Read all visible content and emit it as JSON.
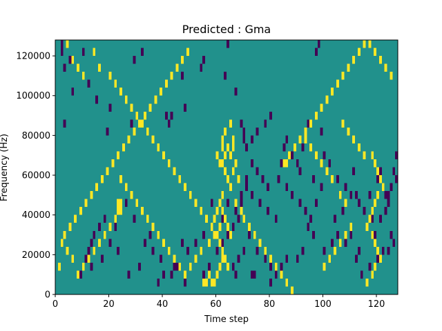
{
  "chart_data": {
    "type": "heatmap",
    "title": "Predicted : Gma",
    "xlabel": "Time step",
    "ylabel": "Frequency (Hz)",
    "xlim": [
      0,
      128
    ],
    "ylim": [
      0,
      128000
    ],
    "x_ticks": [
      0,
      20,
      40,
      60,
      80,
      100,
      120
    ],
    "y_ticks": [
      0,
      20000,
      40000,
      60000,
      80000,
      100000,
      120000
    ],
    "x_tick_labels": [
      "0",
      "20",
      "40",
      "60",
      "80",
      "100",
      "120"
    ],
    "y_tick_labels": [
      "0",
      "20000",
      "40000",
      "60000",
      "80000",
      "100000",
      "120000"
    ],
    "grid": false,
    "colors": {
      "background": "#21918c",
      "low": "#440154",
      "high": "#fde725",
      "frame": "#000000"
    },
    "cell_width": 1,
    "cell_height": 4000,
    "background_value": 0,
    "low_cells": [
      [
        2,
        124000
      ],
      [
        2,
        120000
      ],
      [
        3,
        112000
      ],
      [
        5,
        116000
      ],
      [
        10,
        120000
      ],
      [
        12,
        104000
      ],
      [
        6,
        100000
      ],
      [
        3,
        84000
      ],
      [
        15,
        96000
      ],
      [
        20,
        92000
      ],
      [
        19,
        80000
      ],
      [
        28,
        84000
      ],
      [
        29,
        116000
      ],
      [
        32,
        120000
      ],
      [
        33,
        88000
      ],
      [
        41,
        88000
      ],
      [
        42,
        84000
      ],
      [
        43,
        88000
      ],
      [
        47,
        108000
      ],
      [
        48,
        92000
      ],
      [
        54,
        112000
      ],
      [
        55,
        116000
      ],
      [
        63,
        108000
      ],
      [
        64,
        124000
      ],
      [
        67,
        100000
      ],
      [
        69,
        84000
      ],
      [
        70,
        80000
      ],
      [
        70,
        76000
      ],
      [
        71,
        72000
      ],
      [
        73,
        76000
      ],
      [
        75,
        80000
      ],
      [
        78,
        84000
      ],
      [
        80,
        88000
      ],
      [
        84,
        64000
      ],
      [
        85,
        72000
      ],
      [
        86,
        76000
      ],
      [
        88,
        68000
      ],
      [
        90,
        64000
      ],
      [
        91,
        60000
      ],
      [
        92,
        72000
      ],
      [
        94,
        84000
      ],
      [
        97,
        120000
      ],
      [
        98,
        124000
      ],
      [
        99,
        80000
      ],
      [
        100,
        68000
      ],
      [
        102,
        64000
      ],
      [
        105,
        56000
      ],
      [
        108,
        52000
      ],
      [
        110,
        48000
      ],
      [
        111,
        60000
      ],
      [
        112,
        48000
      ],
      [
        113,
        44000
      ],
      [
        115,
        40000
      ],
      [
        117,
        48000
      ],
      [
        118,
        36000
      ],
      [
        120,
        56000
      ],
      [
        121,
        60000
      ],
      [
        122,
        52000
      ],
      [
        123,
        48000
      ],
      [
        124,
        44000
      ],
      [
        125,
        52000
      ],
      [
        126,
        60000
      ],
      [
        127,
        56000
      ],
      [
        127,
        68000
      ],
      [
        126,
        24000
      ],
      [
        125,
        28000
      ],
      [
        124,
        20000
      ],
      [
        122,
        20000
      ],
      [
        120,
        16000
      ],
      [
        117,
        12000
      ],
      [
        114,
        8000
      ],
      [
        112,
        16000
      ],
      [
        108,
        24000
      ],
      [
        105,
        28000
      ],
      [
        103,
        24000
      ],
      [
        100,
        20000
      ],
      [
        96,
        28000
      ],
      [
        94,
        32000
      ],
      [
        92,
        20000
      ],
      [
        90,
        16000
      ],
      [
        86,
        16000
      ],
      [
        84,
        12000
      ],
      [
        82,
        8000
      ],
      [
        80,
        12000
      ],
      [
        78,
        16000
      ],
      [
        75,
        20000
      ],
      [
        72,
        28000
      ],
      [
        70,
        20000
      ],
      [
        68,
        16000
      ],
      [
        66,
        12000
      ],
      [
        67,
        8000
      ],
      [
        73,
        8000
      ],
      [
        74,
        8000
      ],
      [
        80,
        4000
      ],
      [
        82,
        36000
      ],
      [
        79,
        40000
      ],
      [
        76,
        44000
      ],
      [
        73,
        48000
      ],
      [
        71,
        52000
      ],
      [
        69,
        48000
      ],
      [
        67,
        40000
      ],
      [
        64,
        44000
      ],
      [
        62,
        36000
      ],
      [
        60,
        40000
      ],
      [
        58,
        44000
      ],
      [
        55,
        28000
      ],
      [
        52,
        24000
      ],
      [
        49,
        20000
      ],
      [
        47,
        24000
      ],
      [
        44,
        12000
      ],
      [
        43,
        8000
      ],
      [
        39,
        16000
      ],
      [
        36,
        20000
      ],
      [
        35,
        28000
      ],
      [
        33,
        24000
      ],
      [
        29,
        36000
      ],
      [
        26,
        44000
      ],
      [
        24,
        40000
      ],
      [
        22,
        32000
      ],
      [
        18,
        36000
      ],
      [
        16,
        32000
      ],
      [
        14,
        28000
      ],
      [
        12,
        20000
      ],
      [
        11,
        16000
      ],
      [
        10,
        12000
      ],
      [
        9,
        8000
      ],
      [
        13,
        24000
      ],
      [
        13,
        12000
      ],
      [
        17,
        16000
      ],
      [
        20,
        24000
      ],
      [
        23,
        20000
      ],
      [
        27,
        8000
      ],
      [
        31,
        12000
      ],
      [
        38,
        4000
      ],
      [
        40,
        8000
      ],
      [
        45,
        12000
      ],
      [
        48,
        4000
      ],
      [
        55,
        8000
      ],
      [
        57,
        12000
      ],
      [
        60,
        20000
      ],
      [
        62,
        24000
      ],
      [
        64,
        28000
      ],
      [
        66,
        32000
      ],
      [
        68,
        36000
      ],
      [
        69,
        44000
      ],
      [
        71,
        56000
      ],
      [
        73,
        64000
      ],
      [
        75,
        60000
      ],
      [
        77,
        56000
      ],
      [
        79,
        52000
      ],
      [
        83,
        56000
      ],
      [
        86,
        52000
      ],
      [
        88,
        48000
      ],
      [
        91,
        44000
      ],
      [
        93,
        40000
      ],
      [
        95,
        36000
      ],
      [
        97,
        44000
      ],
      [
        96,
        56000
      ],
      [
        99,
        52000
      ],
      [
        104,
        36000
      ],
      [
        107,
        40000
      ],
      [
        110,
        28000
      ],
      [
        113,
        20000
      ],
      [
        116,
        32000
      ],
      [
        119,
        28000
      ],
      [
        121,
        36000
      ],
      [
        123,
        40000
      ],
      [
        124,
        48000
      ]
    ],
    "high_cells": [
      [
        4,
        124000
      ],
      [
        6,
        116000
      ],
      [
        8,
        112000
      ],
      [
        10,
        108000
      ],
      [
        14,
        120000
      ],
      [
        16,
        112000
      ],
      [
        20,
        108000
      ],
      [
        22,
        104000
      ],
      [
        24,
        100000
      ],
      [
        26,
        96000
      ],
      [
        28,
        92000
      ],
      [
        30,
        88000
      ],
      [
        32,
        84000
      ],
      [
        34,
        80000
      ],
      [
        36,
        76000
      ],
      [
        38,
        72000
      ],
      [
        40,
        68000
      ],
      [
        42,
        64000
      ],
      [
        44,
        60000
      ],
      [
        46,
        56000
      ],
      [
        48,
        52000
      ],
      [
        50,
        48000
      ],
      [
        52,
        44000
      ],
      [
        54,
        40000
      ],
      [
        56,
        36000
      ],
      [
        58,
        32000
      ],
      [
        60,
        28000
      ],
      [
        61,
        24000
      ],
      [
        62,
        20000
      ],
      [
        63,
        16000
      ],
      [
        64,
        12000
      ],
      [
        62,
        64000
      ],
      [
        63,
        68000
      ],
      [
        64,
        72000
      ],
      [
        62,
        76000
      ],
      [
        63,
        80000
      ],
      [
        65,
        84000
      ],
      [
        61,
        64000
      ],
      [
        60,
        68000
      ],
      [
        62,
        72000
      ],
      [
        63,
        60000
      ],
      [
        64,
        56000
      ],
      [
        65,
        52000
      ],
      [
        62,
        48000
      ],
      [
        61,
        44000
      ],
      [
        60,
        40000
      ],
      [
        59,
        36000
      ],
      [
        58,
        4000
      ],
      [
        57,
        8000
      ],
      [
        56,
        4000
      ],
      [
        55,
        4000
      ],
      [
        59,
        4000
      ],
      [
        60,
        8000
      ],
      [
        61,
        12000
      ],
      [
        62,
        16000
      ],
      [
        64,
        32000
      ],
      [
        65,
        28000
      ],
      [
        63,
        36000
      ],
      [
        62,
        40000
      ],
      [
        61,
        32000
      ],
      [
        59,
        28000
      ],
      [
        57,
        24000
      ],
      [
        54,
        20000
      ],
      [
        52,
        16000
      ],
      [
        50,
        12000
      ],
      [
        48,
        8000
      ],
      [
        46,
        12000
      ],
      [
        44,
        16000
      ],
      [
        42,
        20000
      ],
      [
        40,
        24000
      ],
      [
        38,
        28000
      ],
      [
        36,
        32000
      ],
      [
        34,
        36000
      ],
      [
        32,
        40000
      ],
      [
        30,
        44000
      ],
      [
        28,
        48000
      ],
      [
        26,
        52000
      ],
      [
        24,
        56000
      ],
      [
        23,
        44000
      ],
      [
        24,
        44000
      ],
      [
        24,
        40000
      ],
      [
        23,
        40000
      ],
      [
        22,
        36000
      ],
      [
        20,
        32000
      ],
      [
        18,
        28000
      ],
      [
        16,
        24000
      ],
      [
        14,
        20000
      ],
      [
        12,
        16000
      ],
      [
        10,
        12000
      ],
      [
        8,
        8000
      ],
      [
        6,
        16000
      ],
      [
        4,
        20000
      ],
      [
        2,
        24000
      ],
      [
        1,
        12000
      ],
      [
        3,
        28000
      ],
      [
        5,
        32000
      ],
      [
        7,
        36000
      ],
      [
        9,
        40000
      ],
      [
        11,
        44000
      ],
      [
        13,
        48000
      ],
      [
        15,
        52000
      ],
      [
        17,
        56000
      ],
      [
        19,
        60000
      ],
      [
        21,
        64000
      ],
      [
        23,
        68000
      ],
      [
        25,
        72000
      ],
      [
        27,
        76000
      ],
      [
        29,
        80000
      ],
      [
        31,
        84000
      ],
      [
        33,
        88000
      ],
      [
        35,
        92000
      ],
      [
        37,
        96000
      ],
      [
        39,
        100000
      ],
      [
        41,
        104000
      ],
      [
        43,
        108000
      ],
      [
        45,
        112000
      ],
      [
        47,
        116000
      ],
      [
        49,
        120000
      ],
      [
        66,
        76000
      ],
      [
        66,
        72000
      ],
      [
        65,
        68000
      ],
      [
        67,
        64000
      ],
      [
        66,
        60000
      ],
      [
        68,
        56000
      ],
      [
        67,
        44000
      ],
      [
        69,
        40000
      ],
      [
        70,
        36000
      ],
      [
        72,
        32000
      ],
      [
        74,
        28000
      ],
      [
        76,
        24000
      ],
      [
        78,
        20000
      ],
      [
        80,
        16000
      ],
      [
        82,
        12000
      ],
      [
        84,
        8000
      ],
      [
        86,
        4000
      ],
      [
        88,
        0
      ],
      [
        85,
        64000
      ],
      [
        86,
        64000
      ],
      [
        87,
        68000
      ],
      [
        89,
        72000
      ],
      [
        91,
        76000
      ],
      [
        93,
        80000
      ],
      [
        95,
        84000
      ],
      [
        97,
        88000
      ],
      [
        99,
        92000
      ],
      [
        101,
        96000
      ],
      [
        103,
        100000
      ],
      [
        105,
        104000
      ],
      [
        107,
        108000
      ],
      [
        109,
        112000
      ],
      [
        111,
        116000
      ],
      [
        113,
        120000
      ],
      [
        115,
        124000
      ],
      [
        117,
        124000
      ],
      [
        119,
        120000
      ],
      [
        121,
        116000
      ],
      [
        123,
        112000
      ],
      [
        125,
        108000
      ],
      [
        118,
        68000
      ],
      [
        119,
        64000
      ],
      [
        120,
        60000
      ],
      [
        121,
        56000
      ],
      [
        122,
        52000
      ],
      [
        120,
        48000
      ],
      [
        119,
        44000
      ],
      [
        118,
        40000
      ],
      [
        117,
        36000
      ],
      [
        116,
        32000
      ],
      [
        118,
        28000
      ],
      [
        119,
        24000
      ],
      [
        120,
        20000
      ],
      [
        121,
        16000
      ],
      [
        119,
        12000
      ],
      [
        118,
        8000
      ],
      [
        116,
        4000
      ],
      [
        106,
        48000
      ],
      [
        108,
        44000
      ],
      [
        103,
        56000
      ],
      [
        101,
        60000
      ],
      [
        99,
        64000
      ],
      [
        97,
        68000
      ],
      [
        95,
        72000
      ],
      [
        93,
        76000
      ],
      [
        107,
        84000
      ],
      [
        109,
        80000
      ],
      [
        111,
        76000
      ],
      [
        113,
        72000
      ],
      [
        115,
        68000
      ],
      [
        100,
        12000
      ],
      [
        102,
        16000
      ],
      [
        104,
        20000
      ],
      [
        106,
        24000
      ],
      [
        108,
        28000
      ],
      [
        110,
        32000
      ]
    ]
  }
}
